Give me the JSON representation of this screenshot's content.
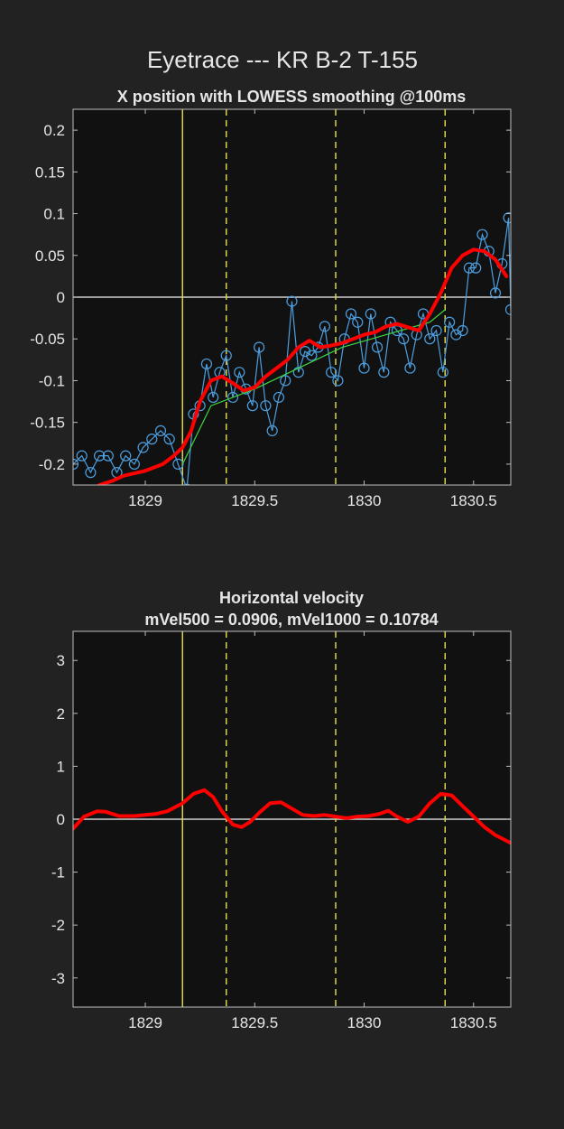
{
  "figure": {
    "title": "Eyetrace --- KR B-2 T-155",
    "background": "#222222",
    "axes_background": "#111111"
  },
  "chart_data": [
    {
      "type": "line",
      "title": "X position with LOWESS smoothing @100ms",
      "subtitle": "",
      "xlim": [
        1828.67,
        1830.67
      ],
      "ylim": [
        -0.225,
        0.225
      ],
      "xticks": [
        1829,
        1829.5,
        1830,
        1830.5
      ],
      "xtick_labels": [
        "1829",
        "1829.5",
        "1830",
        "1830.5"
      ],
      "yticks": [
        0.2,
        0.15,
        0.1,
        0.05,
        0,
        -0.05,
        -0.1,
        -0.15,
        -0.2
      ],
      "ytick_labels": [
        "0.2",
        "0.15",
        "0.1",
        "0.05",
        "0",
        "-0.05",
        "-0.1",
        "-0.15",
        "-0.2"
      ],
      "zero_line": 0,
      "vlines": [
        {
          "x": 1829.17,
          "style": "solid",
          "color": "#d9d24a"
        },
        {
          "x": 1829.37,
          "style": "dashed",
          "color": "#d9d24a"
        },
        {
          "x": 1829.87,
          "style": "dashed",
          "color": "#d9d24a"
        },
        {
          "x": 1830.37,
          "style": "dashed",
          "color": "#d9d24a"
        }
      ],
      "series": [
        {
          "kind": "raw",
          "color": "#4d9fe0",
          "marker": "circle",
          "x": [
            1828.67,
            1828.71,
            1828.75,
            1828.79,
            1828.83,
            1828.87,
            1828.91,
            1828.95,
            1828.99,
            1829.03,
            1829.07,
            1829.11,
            1829.15,
            1829.19,
            1829.22,
            1829.25,
            1829.28,
            1829.31,
            1829.34,
            1829.37,
            1829.4,
            1829.43,
            1829.46,
            1829.49,
            1829.52,
            1829.55,
            1829.58,
            1829.61,
            1829.64,
            1829.67,
            1829.7,
            1829.73,
            1829.76,
            1829.79,
            1829.82,
            1829.85,
            1829.88,
            1829.91,
            1829.94,
            1829.97,
            1830.0,
            1830.03,
            1830.06,
            1830.09,
            1830.12,
            1830.15,
            1830.18,
            1830.21,
            1830.24,
            1830.27,
            1830.3,
            1830.33,
            1830.36,
            1830.39,
            1830.42,
            1830.45,
            1830.48,
            1830.51,
            1830.54,
            1830.57,
            1830.6,
            1830.63,
            1830.66,
            1830.67
          ],
          "values": [
            -0.2,
            -0.19,
            -0.21,
            -0.19,
            -0.19,
            -0.21,
            -0.19,
            -0.2,
            -0.18,
            -0.17,
            -0.16,
            -0.17,
            -0.2,
            -0.23,
            -0.14,
            -0.13,
            -0.08,
            -0.12,
            -0.09,
            -0.07,
            -0.12,
            -0.09,
            -0.11,
            -0.13,
            -0.06,
            -0.13,
            -0.16,
            -0.12,
            -0.1,
            -0.005,
            -0.09,
            -0.065,
            -0.07,
            -0.06,
            -0.035,
            -0.09,
            -0.1,
            -0.05,
            -0.02,
            -0.03,
            -0.085,
            -0.02,
            -0.06,
            -0.09,
            -0.03,
            -0.04,
            -0.05,
            -0.085,
            -0.045,
            -0.02,
            -0.05,
            -0.04,
            -0.09,
            -0.03,
            -0.045,
            -0.04,
            0.035,
            0.035,
            0.075,
            0.055,
            0.005,
            0.04,
            0.095,
            -0.015
          ],
          "smooth_x": [],
          "smooth_values": []
        },
        {
          "kind": "trend",
          "color": "#3fd43f",
          "x": [
            1829.17,
            1829.3,
            1829.5,
            1829.7,
            1829.9,
            1830.1,
            1830.3,
            1830.37
          ],
          "values": [
            -0.2,
            -0.13,
            -0.11,
            -0.085,
            -0.06,
            -0.045,
            -0.03,
            -0.015
          ]
        },
        {
          "kind": "smoothed",
          "color": "#ff0000",
          "x": [
            1828.79,
            1828.85,
            1828.9,
            1829.0,
            1829.08,
            1829.13,
            1829.17,
            1829.21,
            1829.25,
            1829.3,
            1829.35,
            1829.4,
            1829.45,
            1829.5,
            1829.55,
            1829.6,
            1829.65,
            1829.7,
            1829.75,
            1829.8,
            1829.85,
            1829.9,
            1829.95,
            1830.0,
            1830.05,
            1830.1,
            1830.15,
            1830.2,
            1830.25,
            1830.3,
            1830.35,
            1830.4,
            1830.45,
            1830.5,
            1830.55,
            1830.6,
            1830.65
          ],
          "values": [
            -0.225,
            -0.22,
            -0.214,
            -0.208,
            -0.2,
            -0.19,
            -0.18,
            -0.16,
            -0.125,
            -0.1,
            -0.095,
            -0.103,
            -0.112,
            -0.108,
            -0.095,
            -0.085,
            -0.075,
            -0.06,
            -0.052,
            -0.06,
            -0.058,
            -0.055,
            -0.05,
            -0.045,
            -0.042,
            -0.035,
            -0.032,
            -0.036,
            -0.04,
            -0.02,
            0.005,
            0.035,
            0.05,
            0.057,
            0.055,
            0.045,
            0.025
          ]
        }
      ]
    },
    {
      "type": "line",
      "title": "Horizontal velocity",
      "subtitle": "mVel500 = 0.0906, mVel1000 = 0.10784",
      "xlim": [
        1828.67,
        1830.67
      ],
      "ylim": [
        -3.55,
        3.55
      ],
      "xticks": [
        1829,
        1829.5,
        1830,
        1830.5
      ],
      "xtick_labels": [
        "1829",
        "1829.5",
        "1830",
        "1830.5"
      ],
      "yticks": [
        3,
        2,
        1,
        0,
        -1,
        -2,
        -3
      ],
      "ytick_labels": [
        "3",
        "2",
        "1",
        "0",
        "-1",
        "-2",
        "-3"
      ],
      "zero_line": 0,
      "vlines": [
        {
          "x": 1829.17,
          "style": "solid",
          "color": "#d9d24a"
        },
        {
          "x": 1829.37,
          "style": "dashed",
          "color": "#d9d24a"
        },
        {
          "x": 1829.87,
          "style": "dashed",
          "color": "#d9d24a"
        },
        {
          "x": 1830.37,
          "style": "dashed",
          "color": "#d9d24a"
        }
      ],
      "series": [
        {
          "kind": "smoothed",
          "color": "#ff0000",
          "x": [
            1828.67,
            1828.72,
            1828.78,
            1828.82,
            1828.88,
            1828.95,
            1829.0,
            1829.05,
            1829.1,
            1829.17,
            1829.22,
            1829.27,
            1829.31,
            1829.35,
            1829.4,
            1829.44,
            1829.48,
            1829.52,
            1829.57,
            1829.62,
            1829.67,
            1829.72,
            1829.77,
            1829.82,
            1829.87,
            1829.92,
            1829.97,
            1830.02,
            1830.07,
            1830.11,
            1830.15,
            1830.2,
            1830.25,
            1830.3,
            1830.35,
            1830.4,
            1830.45,
            1830.5,
            1830.55,
            1830.6,
            1830.67
          ],
          "values": [
            -0.18,
            0.05,
            0.15,
            0.14,
            0.06,
            0.06,
            0.08,
            0.1,
            0.15,
            0.3,
            0.48,
            0.55,
            0.42,
            0.15,
            -0.1,
            -0.15,
            -0.05,
            0.12,
            0.3,
            0.32,
            0.2,
            0.08,
            0.06,
            0.08,
            0.05,
            0.02,
            0.05,
            0.06,
            0.1,
            0.16,
            0.05,
            -0.05,
            0.05,
            0.3,
            0.48,
            0.45,
            0.25,
            0.05,
            -0.15,
            -0.3,
            -0.45
          ]
        }
      ]
    }
  ]
}
